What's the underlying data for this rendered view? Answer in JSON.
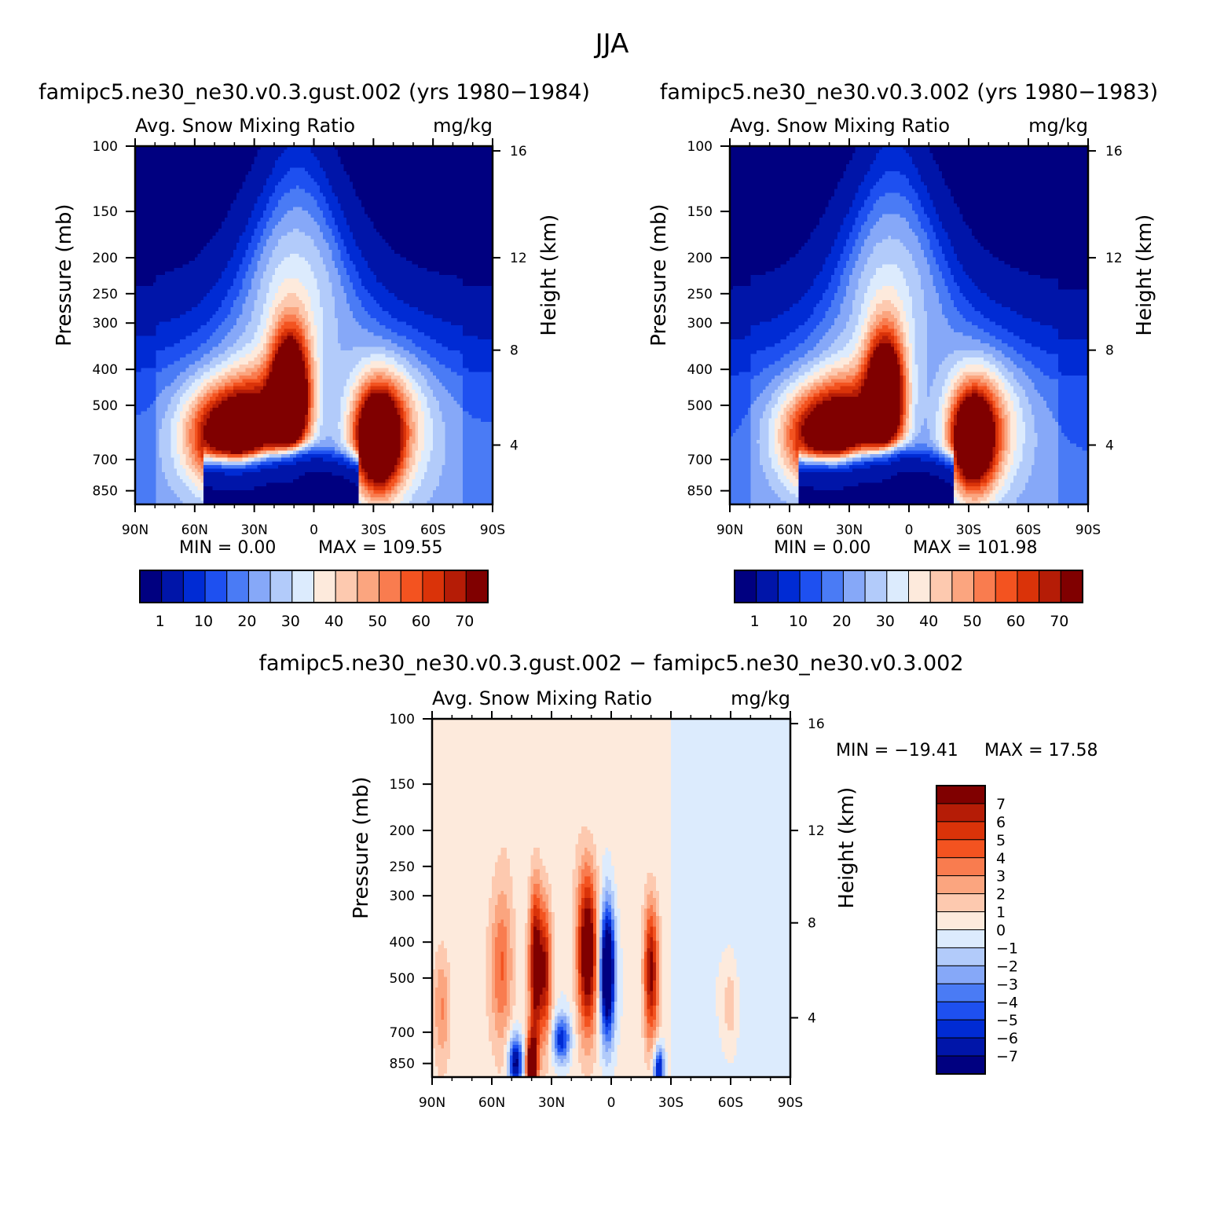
{
  "figure": {
    "title": "JJA"
  },
  "chart_data": [
    {
      "type": "heatmap",
      "case_title": "famipc5.ne30_ne30.v0.3.gust.002 (yrs 1980−1984)",
      "variable": "Avg. Snow Mixing Ratio",
      "units": "mg/kg",
      "ylabel": "Pressure (mb)",
      "ylabel_right": "Height (km)",
      "x_ticks": [
        "90N",
        "60N",
        "30N",
        "0",
        "30S",
        "60S",
        "90S"
      ],
      "y_ticks": [
        "100",
        "150",
        "200",
        "250",
        "300",
        "400",
        "500",
        "700",
        "850"
      ],
      "y_right_ticks": [
        "16",
        "12",
        "8",
        "4"
      ],
      "min_label": "MIN =     0.00",
      "max_label": "MAX =  109.55",
      "min": 0.0,
      "max": 109.55,
      "colorbar_labels": [
        "1",
        "10",
        "20",
        "30",
        "40",
        "50",
        "60",
        "70"
      ],
      "cmap": [
        "#000080",
        "#0015A9",
        "#002BD4",
        "#1E50F0",
        "#4A7BF5",
        "#86A8F8",
        "#B2CBFA",
        "#DCEBFD",
        "#FDEADC",
        "#FDC9AF",
        "#FBA57F",
        "#F97C4F",
        "#F35320",
        "#DA3309",
        "#B51C06",
        "#800000"
      ]
    },
    {
      "type": "heatmap",
      "case_title": "famipc5.ne30_ne30.v0.3.002 (yrs 1980−1983)",
      "variable": "Avg. Snow Mixing Ratio",
      "units": "mg/kg",
      "ylabel": "Pressure (mb)",
      "ylabel_right": "Height (km)",
      "x_ticks": [
        "90N",
        "60N",
        "30N",
        "0",
        "30S",
        "60S",
        "90S"
      ],
      "y_ticks": [
        "100",
        "150",
        "200",
        "250",
        "300",
        "400",
        "500",
        "700",
        "850"
      ],
      "y_right_ticks": [
        "16",
        "12",
        "8",
        "4"
      ],
      "min_label": "MIN =     0.00",
      "max_label": "MAX =  101.98",
      "min": 0.0,
      "max": 101.98,
      "colorbar_labels": [
        "1",
        "10",
        "20",
        "30",
        "40",
        "50",
        "60",
        "70"
      ],
      "cmap": [
        "#000080",
        "#0015A9",
        "#002BD4",
        "#1E50F0",
        "#4A7BF5",
        "#86A8F8",
        "#B2CBFA",
        "#DCEBFD",
        "#FDEADC",
        "#FDC9AF",
        "#FBA57F",
        "#F97C4F",
        "#F35320",
        "#DA3309",
        "#B51C06",
        "#800000"
      ]
    },
    {
      "type": "heatmap",
      "case_title": "famipc5.ne30_ne30.v0.3.gust.002 − famipc5.ne30_ne30.v0.3.002",
      "variable": "Avg. Snow Mixing Ratio",
      "units": "mg/kg",
      "ylabel": "Pressure (mb)",
      "ylabel_right": "Height (km)",
      "x_ticks": [
        "90N",
        "60N",
        "30N",
        "0",
        "30S",
        "60S",
        "90S"
      ],
      "y_ticks": [
        "100",
        "150",
        "200",
        "250",
        "300",
        "400",
        "500",
        "700",
        "850"
      ],
      "y_right_ticks": [
        "16",
        "12",
        "8",
        "4"
      ],
      "min_label": "MIN =  −19.41",
      "max_label": "MAX =   17.58",
      "min": -19.41,
      "max": 17.58,
      "colorbar_labels": [
        "7",
        "6",
        "5",
        "4",
        "3",
        "2",
        "1",
        "0",
        "−1",
        "−2",
        "−3",
        "−4",
        "−5",
        "−6",
        "−7"
      ],
      "cmap": [
        "#800000",
        "#B51C06",
        "#DA3309",
        "#F35320",
        "#F97C4F",
        "#FBA57F",
        "#FDC9AF",
        "#FDEADC",
        "#DCEBFD",
        "#B2CBFA",
        "#86A8F8",
        "#4A7BF5",
        "#1E50F0",
        "#002BD4",
        "#0015A9",
        "#000080"
      ]
    }
  ]
}
